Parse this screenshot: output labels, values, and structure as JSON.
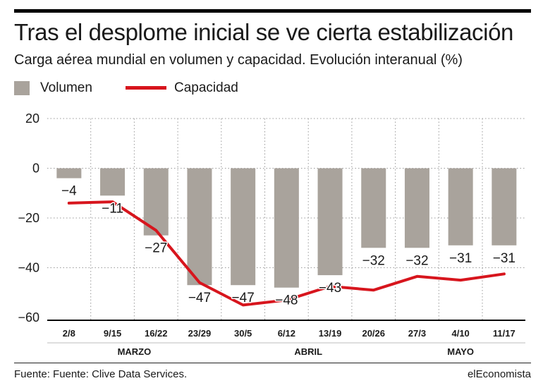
{
  "header": {
    "title": "Tras el desplome inicial se ve cierta estabilización",
    "subtitle": "Carga aérea mundial en volumen y capacidad. Evolución interanual (%)"
  },
  "legend": {
    "bar_label": "Volumen",
    "line_label": "Capacidad"
  },
  "footer": {
    "source": "Fuente: Fuente: Clive Data Services.",
    "brand": "elEconomista"
  },
  "chart_data": {
    "type": "bar",
    "categories": [
      "2/8",
      "9/15",
      "16/22",
      "23/29",
      "30/5",
      "6/12",
      "13/19",
      "20/26",
      "27/3",
      "4/10",
      "11/17"
    ],
    "months": [
      {
        "label": "MARZO",
        "from": 0,
        "to": 3
      },
      {
        "label": "ABRIL",
        "from": 4,
        "to": 7
      },
      {
        "label": "MAYO",
        "from": 8,
        "to": 10
      }
    ],
    "series": [
      {
        "name": "Volumen",
        "type": "bar",
        "values": [
          -4,
          -11,
          -27,
          -47,
          -47,
          -48,
          -43,
          -32,
          -32,
          -31,
          -31
        ],
        "labels": [
          "−4",
          "−11",
          "−27",
          "−47",
          "−47",
          "−48",
          "−43",
          "−32",
          "−32",
          "−31",
          "−31"
        ]
      },
      {
        "name": "Capacidad",
        "type": "line",
        "values": [
          -14,
          -13.5,
          -25,
          -46,
          -55,
          -53,
          -47.5,
          -49,
          -43.5,
          -45,
          -42.5
        ]
      }
    ],
    "yticks": [
      20,
      0,
      -20,
      -40,
      -60
    ],
    "ytick_labels": [
      "20",
      "0",
      "−20",
      "−40",
      "−60"
    ],
    "ylim": [
      -60,
      20
    ],
    "grid": true,
    "colors": {
      "bar": "#a9a39c",
      "line": "#d7151d",
      "grid": "#9a9a9a",
      "axis": "#000000"
    }
  }
}
